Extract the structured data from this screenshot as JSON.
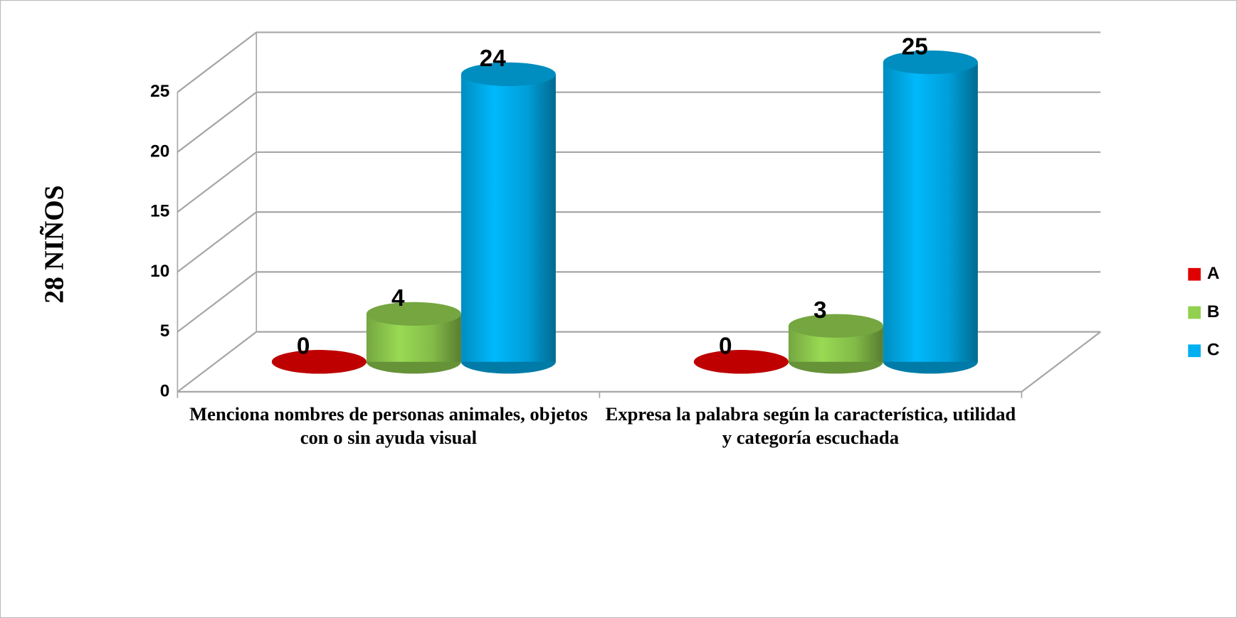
{
  "chart_data": {
    "type": "bar3d",
    "y_label": "28   NIÑOS",
    "categories": [
      "Menciona nombres de personas animales, objetos con o sin ayuda visual",
      "Expresa la palabra según la característica, utilidad y categoría escuchada"
    ],
    "series": [
      {
        "name": "A",
        "color": "#e00000",
        "values": [
          0,
          0
        ]
      },
      {
        "name": "B",
        "color": "#92d050",
        "values": [
          4,
          3
        ]
      },
      {
        "name": "C",
        "color": "#00b0f0",
        "values": [
          24,
          25
        ]
      }
    ],
    "ylim": [
      0,
      25
    ],
    "yticks": [
      0,
      5,
      10,
      15,
      20,
      25
    ],
    "grid": true,
    "legend": "right"
  }
}
